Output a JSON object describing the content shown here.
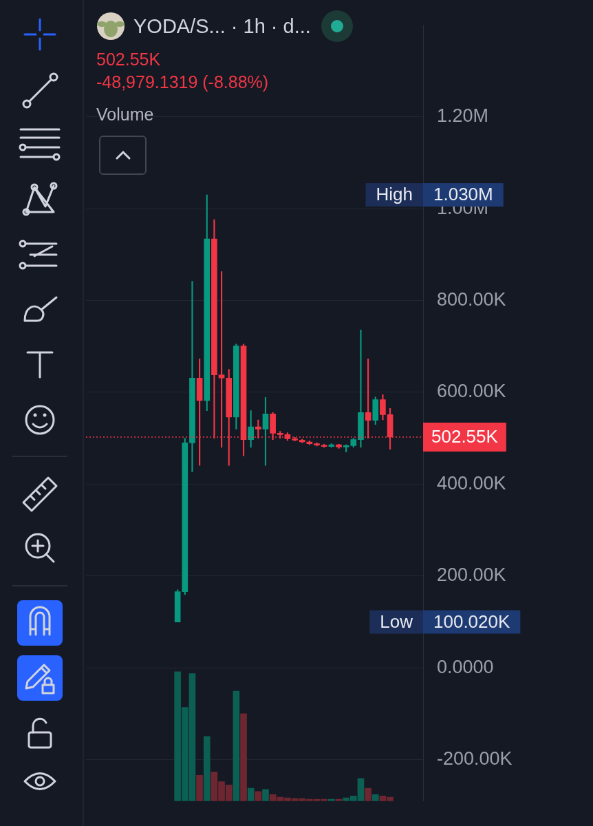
{
  "chart_data": {
    "type": "candlestick",
    "title": "YODA/S... · 1h · d...",
    "subtitle": [
      "502.55K",
      "-48,979.1319 (-8.88%)"
    ],
    "categories": [
      null,
      null,
      null,
      null,
      null,
      null,
      null,
      null,
      null,
      null,
      null,
      null,
      null,
      null,
      null,
      null,
      null,
      null,
      null,
      null,
      null,
      null,
      null,
      null,
      null,
      null,
      null,
      null,
      null,
      null,
      null,
      null,
      null,
      null,
      null,
      null,
      null,
      null,
      null,
      null,
      null,
      null,
      null,
      null,
      null,
      null
    ],
    "series": [
      {
        "type": "candlestick",
        "open": [
          null,
          null,
          null,
          null,
          null,
          null,
          null,
          null,
          null,
          null,
          null,
          null,
          100020,
          166000,
          490000,
          631000,
          582000,
          934000,
          638000,
          631000,
          546000,
          701000,
          497000,
          525000,
          520000,
          553000,
          511000,
          508000,
          499000,
          496000,
          492000,
          488000,
          485000,
          482000,
          486000,
          481000,
          484000,
          497000,
          556000,
          539000,
          584000,
          551529.13,
          null,
          null,
          null,
          null
        ],
        "high": [
          null,
          null,
          null,
          null,
          null,
          null,
          null,
          null,
          null,
          null,
          null,
          null,
          170000,
          500000,
          842000,
          673000,
          1030000,
          976000,
          863000,
          650000,
          705000,
          705000,
          560000,
          540000,
          589000,
          556000,
          515000,
          512000,
          502000,
          498000,
          494000,
          490000,
          487000,
          488000,
          487000,
          486000,
          500000,
          736000,
          673000,
          590000,
          595000,
          565000,
          null,
          null,
          null,
          null
        ],
        "low": [
          null,
          null,
          null,
          null,
          null,
          null,
          null,
          null,
          null,
          null,
          null,
          null,
          100020,
          160000,
          427000,
          441000,
          560000,
          500000,
          480000,
          441000,
          520000,
          462000,
          480000,
          500000,
          441000,
          497000,
          500000,
          495000,
          494000,
          490000,
          486000,
          483000,
          480000,
          480000,
          478000,
          470000,
          480000,
          480000,
          500000,
          530000,
          540000,
          476000,
          null,
          null,
          null,
          null
        ],
        "close": [
          null,
          null,
          null,
          null,
          null,
          null,
          null,
          null,
          null,
          null,
          null,
          null,
          166000,
          490000,
          631000,
          582000,
          934000,
          638000,
          631000,
          546000,
          701000,
          497000,
          525000,
          520000,
          553000,
          511000,
          508000,
          499000,
          496000,
          492000,
          488000,
          485000,
          482000,
          486000,
          481000,
          484000,
          497000,
          556000,
          539000,
          584000,
          551529.13,
          502550,
          null,
          null,
          null,
          null
        ],
        "colors": [
          null,
          null,
          null,
          null,
          null,
          null,
          null,
          null,
          null,
          null,
          null,
          null,
          "#089981",
          "#089981",
          "#089981",
          "#f23645",
          "#089981",
          "#f23645",
          "#f23645",
          "#f23645",
          "#089981",
          "#f23645",
          "#089981",
          "#f23645",
          "#089981",
          "#f23645",
          "#f23645",
          "#f23645",
          "#f23645",
          "#f23645",
          "#f23645",
          "#f23645",
          "#f23645",
          "#089981",
          "#f23645",
          "#089981",
          "#089981",
          "#089981",
          "#f23645",
          "#089981",
          "#f23645",
          "#f23645",
          null,
          null,
          null,
          null
        ]
      },
      {
        "name": "Volume",
        "type": "bar",
        "axis": "y2",
        "values": [
          null,
          null,
          null,
          null,
          null,
          null,
          null,
          null,
          null,
          null,
          null,
          null,
          200,
          145,
          197,
          40,
          100,
          45,
          30,
          25,
          170,
          135,
          20,
          15,
          18,
          10,
          6,
          5,
          4,
          4,
          3,
          3,
          3,
          3,
          3,
          5,
          8,
          35,
          20,
          10,
          8,
          6,
          null,
          null,
          null,
          null
        ],
        "colors": [
          null,
          null,
          null,
          null,
          null,
          null,
          null,
          null,
          null,
          null,
          null,
          null,
          "#0c5f53",
          "#0c5f53",
          "#0c5f53",
          "#6e2731",
          "#0c5f53",
          "#6e2731",
          "#6e2731",
          "#6e2731",
          "#0c5f53",
          "#6e2731",
          "#0c5f53",
          "#6e2731",
          "#0c5f53",
          "#6e2731",
          "#6e2731",
          "#6e2731",
          "#6e2731",
          "#6e2731",
          "#6e2731",
          "#6e2731",
          "#6e2731",
          "#0c5f53",
          "#6e2731",
          "#0c5f53",
          "#0c5f53",
          "#0c5f53",
          "#6e2731",
          "#0c5f53",
          "#6e2731",
          "#6e2731",
          null,
          null,
          null,
          null
        ]
      }
    ],
    "ylim": [
      -290000,
      1400000
    ],
    "yticks": [
      {
        "value": -200000,
        "label": "-200.00K"
      },
      {
        "value": 0,
        "label": "0.0000"
      },
      {
        "value": 200000,
        "label": "200.00K"
      },
      {
        "value": 400000,
        "label": "400.00K"
      },
      {
        "value": 600000,
        "label": "600.00K"
      },
      {
        "value": 800000,
        "label": "800.00K"
      },
      {
        "value": 1000000,
        "label": "1.00M"
      },
      {
        "value": 1200000,
        "label": "1.20M"
      }
    ],
    "y2lim": [
      0,
      1200
    ],
    "grid": true,
    "tick_labels": "y",
    "price_line": {
      "value": 502550,
      "label": "502.55K",
      "color": "#f23645"
    },
    "markers": [
      {
        "label": "High",
        "value": 1030000,
        "value_label": "1.030M"
      },
      {
        "label": "Low",
        "value": 100020,
        "value_label": "100.020K"
      }
    ]
  }
}
